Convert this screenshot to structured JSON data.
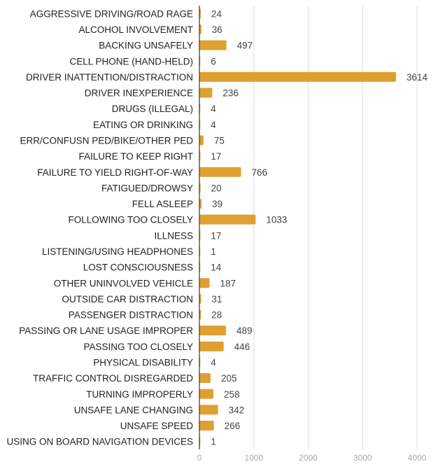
{
  "chart_data": {
    "type": "bar",
    "orientation": "horizontal",
    "title": "",
    "xlabel": "",
    "ylabel": "",
    "xlim": [
      0,
      4000
    ],
    "x_ticks": [
      0,
      1000,
      2000,
      3000,
      4000
    ],
    "grid": true,
    "bar_color": "#E0A030",
    "categories": [
      "AGGRESSIVE DRIVING/ROAD RAGE",
      "ALCOHOL INVOLVEMENT",
      "BACKING UNSAFELY",
      "CELL PHONE (HAND-HELD)",
      "DRIVER INATTENTION/DISTRACTION",
      "DRIVER INEXPERIENCE",
      "DRUGS (ILLEGAL)",
      "EATING OR DRINKING",
      "ERR/CONFUSN PED/BIKE/OTHER PED",
      "FAILURE TO KEEP RIGHT",
      "FAILURE TO YIELD RIGHT-OF-WAY",
      "FATIGUED/DROWSY",
      "FELL ASLEEP",
      "FOLLOWING TOO CLOSELY",
      "ILLNESS",
      "LISTENING/USING HEADPHONES",
      "LOST CONSCIOUSNESS",
      "OTHER UNINVOLVED VEHICLE",
      "OUTSIDE CAR DISTRACTION",
      "PASSENGER DISTRACTION",
      "PASSING OR LANE USAGE IMPROPER",
      "PASSING TOO CLOSELY",
      "PHYSICAL DISABILITY",
      "TRAFFIC CONTROL DISREGARDED",
      "TURNING IMPROPERLY",
      "UNSAFE LANE CHANGING",
      "UNSAFE SPEED",
      "USING ON BOARD NAVIGATION DEVICES"
    ],
    "values": [
      24,
      36,
      497,
      6,
      3614,
      236,
      4,
      4,
      75,
      17,
      766,
      20,
      39,
      1033,
      17,
      1,
      14,
      187,
      31,
      28,
      489,
      446,
      4,
      205,
      258,
      342,
      266,
      1
    ]
  }
}
